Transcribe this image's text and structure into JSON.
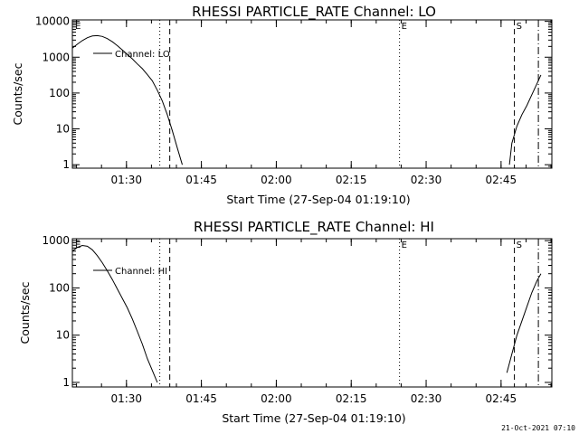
{
  "chart_data": [
    {
      "type": "line",
      "title": "RHESSI PARTICLE_RATE Channel: LO",
      "xlabel": "Start Time (27-Sep-04 01:19:10)",
      "ylabel": "Counts/sec",
      "yscale": "log",
      "ylim": [
        0.8,
        11000
      ],
      "xlim_minutes": [
        0,
        96
      ],
      "y_ticks": [
        {
          "value": 1,
          "label": "1"
        },
        {
          "value": 10,
          "label": "10"
        },
        {
          "value": 100,
          "label": "100"
        },
        {
          "value": 1000,
          "label": "1000"
        },
        {
          "value": 10000,
          "label": "10000"
        }
      ],
      "x_ticks": [
        {
          "minutes": 10.83,
          "label": "01:30"
        },
        {
          "minutes": 25.83,
          "label": "01:45"
        },
        {
          "minutes": 40.83,
          "label": "02:00"
        },
        {
          "minutes": 55.83,
          "label": "02:15"
        },
        {
          "minutes": 70.83,
          "label": "02:30"
        },
        {
          "minutes": 85.83,
          "label": "02:45"
        }
      ],
      "legend": {
        "entry": "Channel: LO",
        "placement": "top-left"
      },
      "markers": [
        {
          "label": "E",
          "minutes": 0.2,
          "style": "none"
        },
        {
          "label": "",
          "minutes": 17.5,
          "style": "dotted"
        },
        {
          "label": "",
          "minutes": 19.5,
          "style": "dashed"
        },
        {
          "label": "E",
          "minutes": 65.5,
          "style": "dotted"
        },
        {
          "label": "S",
          "minutes": 88.5,
          "style": "dashed"
        },
        {
          "label": "",
          "minutes": 93.3,
          "style": "dashdot"
        }
      ],
      "series": [
        {
          "name": "Channel: LO",
          "segments": [
            [
              [
                0,
                1800
              ],
              [
                1,
                2300
              ],
              [
                2,
                2900
              ],
              [
                3,
                3500
              ],
              [
                4,
                3900
              ],
              [
                5,
                4000
              ],
              [
                6,
                3800
              ],
              [
                7,
                3300
              ],
              [
                8,
                2700
              ],
              [
                9,
                2100
              ],
              [
                10,
                1600
              ],
              [
                11,
                1200
              ],
              [
                12,
                900
              ],
              [
                13,
                650
              ],
              [
                14,
                480
              ],
              [
                15,
                330
              ],
              [
                16,
                220
              ],
              [
                17,
                120
              ],
              [
                18,
                60
              ],
              [
                19,
                25
              ],
              [
                20,
                9
              ],
              [
                21,
                3
              ],
              [
                22,
                1
              ]
            ],
            [
              [
                87.5,
                1
              ],
              [
                88,
                4
              ],
              [
                89,
                12
              ],
              [
                90,
                25
              ],
              [
                91,
                45
              ],
              [
                92,
                90
              ],
              [
                93,
                180
              ],
              [
                93.8,
                320
              ]
            ]
          ]
        }
      ]
    },
    {
      "type": "line",
      "title": "RHESSI PARTICLE_RATE Channel: HI",
      "xlabel": "Start Time (27-Sep-04 01:19:10)",
      "ylabel": "Counts/sec",
      "yscale": "log",
      "ylim": [
        0.8,
        1100
      ],
      "xlim_minutes": [
        0,
        96
      ],
      "y_ticks": [
        {
          "value": 1,
          "label": "1"
        },
        {
          "value": 10,
          "label": "10"
        },
        {
          "value": 100,
          "label": "100"
        },
        {
          "value": 1000,
          "label": "1000"
        }
      ],
      "x_ticks": [
        {
          "minutes": 10.83,
          "label": "01:30"
        },
        {
          "minutes": 25.83,
          "label": "01:45"
        },
        {
          "minutes": 40.83,
          "label": "02:00"
        },
        {
          "minutes": 55.83,
          "label": "02:15"
        },
        {
          "minutes": 70.83,
          "label": "02:30"
        },
        {
          "minutes": 85.83,
          "label": "02:45"
        }
      ],
      "legend": {
        "entry": "Channel: HI",
        "placement": "top-left"
      },
      "markers": [
        {
          "label": "E",
          "minutes": 0.2,
          "style": "none"
        },
        {
          "label": "",
          "minutes": 17.5,
          "style": "dotted"
        },
        {
          "label": "",
          "minutes": 19.5,
          "style": "dashed"
        },
        {
          "label": "E",
          "minutes": 65.5,
          "style": "dotted"
        },
        {
          "label": "S",
          "minutes": 88.5,
          "style": "dashed"
        },
        {
          "label": "",
          "minutes": 93.3,
          "style": "dashdot"
        }
      ],
      "series": [
        {
          "name": "Channel: HI",
          "segments": [
            [
              [
                0,
                600
              ],
              [
                1,
                720
              ],
              [
                2,
                790
              ],
              [
                3,
                760
              ],
              [
                4,
                640
              ],
              [
                5,
                480
              ],
              [
                6,
                340
              ],
              [
                7,
                230
              ],
              [
                8,
                150
              ],
              [
                9,
                95
              ],
              [
                10,
                60
              ],
              [
                11,
                38
              ],
              [
                12,
                22
              ],
              [
                13,
                12
              ],
              [
                14,
                6.5
              ],
              [
                15,
                3.2
              ],
              [
                16,
                1.8
              ],
              [
                17,
                1
              ]
            ],
            [
              [
                87,
                1.6
              ],
              [
                88,
                4
              ],
              [
                89,
                10
              ],
              [
                90,
                20
              ],
              [
                91,
                40
              ],
              [
                92,
                80
              ],
              [
                93,
                140
              ],
              [
                93.8,
                200
              ]
            ]
          ]
        }
      ]
    }
  ],
  "footer": {
    "timestamp": "21-Oct-2021 07:10"
  }
}
